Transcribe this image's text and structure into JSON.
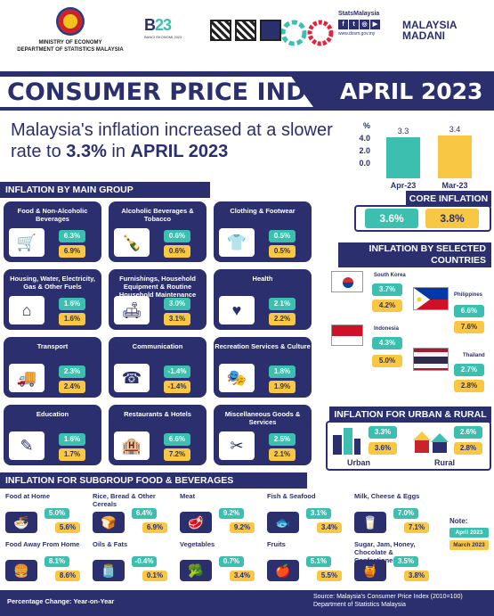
{
  "header": {
    "ministry_line1": "MINISTRY OF ECONOMY",
    "ministry_line2": "DEPARTMENT OF STATISTICS MALAYSIA",
    "banci_title": "BANCI EKONOMI 2023",
    "stats_brand": "StatsMalaysia",
    "stats_url": "www.dosm.gov.my",
    "madani_line1": "MALAYSIA",
    "madani_line2": "MADANI"
  },
  "title": {
    "main": "CONSUMER PRICE INDEX",
    "month": "APRIL 2023"
  },
  "headline": {
    "part1": "Malaysia's inflation increased at a slower rate to ",
    "highlight": "3.3%",
    "part2": " in ",
    "month": "APRIL 2023"
  },
  "mini_chart": {
    "axis_unit": "%",
    "ticks": [
      "4.0",
      "2.0",
      "0.0"
    ],
    "bars": [
      {
        "label": "Apr-23",
        "value": 3.3,
        "display": "3.3",
        "color": "#3cbfae"
      },
      {
        "label": "Mar-23",
        "value": 3.4,
        "display": "3.4",
        "color": "#f8c743"
      }
    ],
    "ymax": 4.0
  },
  "main_group": {
    "title": "INFLATION BY MAIN GROUP",
    "cards": [
      {
        "name": "Food & Non-Alcoholic Beverages",
        "apr": "6.3%",
        "mar": "6.9%",
        "icon": "grocery-icon"
      },
      {
        "name": "Alcoholic Beverages & Tobacco",
        "apr": "0.6%",
        "mar": "0.6%",
        "icon": "bottle-icon"
      },
      {
        "name": "Clothing & Footwear",
        "apr": "0.5%",
        "mar": "0.5%",
        "icon": "clothing-icon"
      },
      {
        "name": "Housing, Water, Electricity, Gas & Other Fuels",
        "apr": "1.6%",
        "mar": "1.6%",
        "icon": "house-icon"
      },
      {
        "name": "Furnishings, Household Equipment & Routine Household Maintenance",
        "apr": "3.0%",
        "mar": "3.1%",
        "icon": "furniture-icon"
      },
      {
        "name": "Health",
        "apr": "2.1%",
        "mar": "2.2%",
        "icon": "health-icon"
      },
      {
        "name": "Transport",
        "apr": "2.3%",
        "mar": "2.4%",
        "icon": "transport-icon"
      },
      {
        "name": "Communication",
        "apr": "-1.4%",
        "mar": "-1.4%",
        "icon": "communication-icon"
      },
      {
        "name": "Recreation Services & Culture",
        "apr": "1.8%",
        "mar": "1.9%",
        "icon": "recreation-icon"
      },
      {
        "name": "Education",
        "apr": "1.6%",
        "mar": "1.7%",
        "icon": "education-icon"
      },
      {
        "name": "Restaurants & Hotels",
        "apr": "6.6%",
        "mar": "7.2%",
        "icon": "hotel-icon"
      },
      {
        "name": "Miscellaneous Goods & Services",
        "apr": "2.5%",
        "mar": "2.1%",
        "icon": "misc-icon"
      }
    ]
  },
  "core": {
    "title": "CORE INFLATION",
    "apr": "3.6%",
    "mar": "3.8%"
  },
  "countries": {
    "title": "INFLATION BY SELECTED COUNTRIES",
    "items": [
      {
        "name": "South Korea",
        "apr": "3.7%",
        "mar": "4.2%"
      },
      {
        "name": "Philippines",
        "apr": "6.6%",
        "mar": "7.6%"
      },
      {
        "name": "Indonesia",
        "apr": "4.3%",
        "mar": "5.0%"
      },
      {
        "name": "Thailand",
        "apr": "2.7%",
        "mar": "2.8%"
      }
    ]
  },
  "urban_rural": {
    "title": "INFLATION FOR URBAN & RURAL",
    "urban": {
      "label": "Urban",
      "apr": "3.3%",
      "mar": "3.6%"
    },
    "rural": {
      "label": "Rural",
      "apr": "2.6%",
      "mar": "2.8%"
    }
  },
  "subgroup": {
    "title": "INFLATION FOR SUBGROUP FOOD & BEVERAGES",
    "items": [
      {
        "name": "Food at Home",
        "apr": "5.0%",
        "mar": "5.6%",
        "icon": "food-home-icon"
      },
      {
        "name": "Rice, Bread & Other Cereals",
        "apr": "6.4%",
        "mar": "6.9%",
        "icon": "bread-icon"
      },
      {
        "name": "Meat",
        "apr": "9.2%",
        "mar": "9.2%",
        "icon": "meat-icon"
      },
      {
        "name": "Fish & Seafood",
        "apr": "3.1%",
        "mar": "3.4%",
        "icon": "fish-icon"
      },
      {
        "name": "Milk, Cheese & Eggs",
        "apr": "7.0%",
        "mar": "7.1%",
        "icon": "milk-icon"
      },
      {
        "name": "Food Away From Home",
        "apr": "8.1%",
        "mar": "8.6%",
        "icon": "burger-icon"
      },
      {
        "name": "Oils & Fats",
        "apr": "-0.4%",
        "mar": "0.1%",
        "icon": "oil-icon"
      },
      {
        "name": "Vegetables",
        "apr": "0.7%",
        "mar": "3.4%",
        "icon": "vegetable-icon"
      },
      {
        "name": "Fruits",
        "apr": "5.1%",
        "mar": "5.5%",
        "icon": "fruit-icon"
      },
      {
        "name": "Sugar, Jam, Honey, Chocolate & Confectionery",
        "apr": "3.5%",
        "mar": "3.8%",
        "icon": "honey-icon"
      }
    ]
  },
  "note": {
    "label": "Note:",
    "apr": "April 2023",
    "mar": "March 2023"
  },
  "footer": {
    "left": "Percentage Change: Year-on-Year",
    "source1": "Source: Malaysia's Consumer Price Index (2010=100)",
    "source2": "Department of Statistics Malaysia"
  },
  "colors": {
    "navy": "#2b2f6e",
    "teal": "#3cbfae",
    "yellow": "#f8c743"
  }
}
